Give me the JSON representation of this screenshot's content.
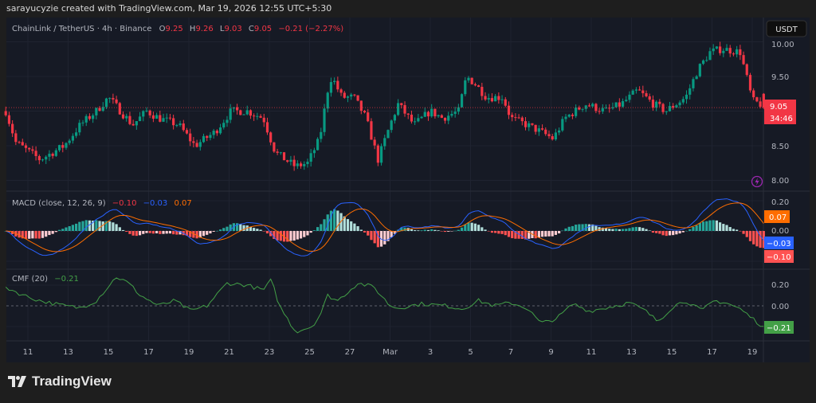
{
  "credit": "sarayucyzie created with TradingView.com, Mar 19, 2026 12:55 UTC+5:30",
  "header": {
    "symbol": "ChainLink / TetherUS · 4h · Binance",
    "o_label": "O",
    "o": "9.25",
    "h_label": "H",
    "h": "9.26",
    "l_label": "L",
    "l": "9.03",
    "c_label": "C",
    "c": "9.05",
    "change": "−0.21 (−2.27%)"
  },
  "currency_button": "USDT",
  "price_axis": {
    "ticks": [
      "10.00",
      "9.50",
      "8.50",
      "8.00"
    ],
    "last_price": "9.05",
    "countdown": "34:46"
  },
  "macd": {
    "legend": "MACD (close, 12, 26, 9)",
    "hist": "−0.10",
    "macd": "−0.03",
    "signal": "0.07",
    "axis_ticks": [
      "0.20",
      "0.00"
    ],
    "label_signal": "0.07",
    "label_macd": "−0.03",
    "label_hist": "−0.10"
  },
  "cmf": {
    "legend": "CMF (20)",
    "value": "−0.21",
    "axis_ticks": [
      "0.20",
      "0.00"
    ],
    "label": "−0.21"
  },
  "time_axis": [
    "11",
    "13",
    "15",
    "17",
    "19",
    "21",
    "23",
    "25",
    "27",
    "Mar",
    "3",
    "5",
    "7",
    "9",
    "11",
    "13",
    "15",
    "17",
    "19"
  ],
  "logo_text": "TradingView",
  "colors": {
    "up": "#089981",
    "down": "#f23645",
    "macd": "#2962ff",
    "signal": "#ff6d00",
    "cmf": "#43a047",
    "bg": "#161a25"
  },
  "chart_data": {
    "type": "candlestick",
    "title": "ChainLink / TetherUS · 4h · Binance",
    "time_unit": "day of Feb 2026 (29 = Mar 1)",
    "time_ticks": [
      11,
      13,
      15,
      17,
      19,
      21,
      23,
      25,
      27,
      29,
      31,
      33,
      35,
      37,
      39,
      41,
      43,
      45,
      47
    ],
    "ylim": [
      7.9,
      10.1
    ],
    "last_candle": {
      "open": 9.25,
      "high": 9.26,
      "low": 9.03,
      "close": 9.05
    },
    "approx_close_path": [
      [
        9.9,
        9.0
      ],
      [
        10.4,
        8.55
      ],
      [
        11.6,
        8.3
      ],
      [
        12.8,
        8.5
      ],
      [
        13.6,
        8.8
      ],
      [
        14.4,
        9.0
      ],
      [
        15.0,
        9.2
      ],
      [
        15.6,
        9.0
      ],
      [
        16.2,
        8.8
      ],
      [
        16.9,
        9.0
      ],
      [
        17.5,
        8.9
      ],
      [
        18.5,
        8.8
      ],
      [
        19.3,
        8.5
      ],
      [
        20.3,
        8.7
      ],
      [
        21.1,
        9.0
      ],
      [
        21.9,
        9.0
      ],
      [
        22.7,
        8.9
      ],
      [
        23.3,
        8.4
      ],
      [
        24.3,
        8.2
      ],
      [
        24.9,
        8.25
      ],
      [
        25.5,
        8.6
      ],
      [
        25.9,
        9.3
      ],
      [
        26.1,
        9.5
      ],
      [
        26.6,
        9.2
      ],
      [
        27.2,
        9.2
      ],
      [
        27.8,
        8.9
      ],
      [
        28.4,
        8.3
      ],
      [
        29.0,
        8.8
      ],
      [
        29.4,
        9.1
      ],
      [
        30.2,
        8.8
      ],
      [
        31.0,
        9.0
      ],
      [
        31.6,
        8.9
      ],
      [
        32.4,
        9.0
      ],
      [
        32.8,
        9.5
      ],
      [
        33.2,
        9.4
      ],
      [
        33.8,
        9.2
      ],
      [
        34.6,
        9.2
      ],
      [
        35.0,
        8.9
      ],
      [
        35.8,
        8.8
      ],
      [
        36.5,
        8.7
      ],
      [
        37.1,
        8.6
      ],
      [
        37.7,
        8.9
      ],
      [
        38.7,
        9.1
      ],
      [
        39.7,
        9.0
      ],
      [
        40.5,
        9.1
      ],
      [
        41.3,
        9.3
      ],
      [
        42.1,
        9.1
      ],
      [
        42.7,
        9.0
      ],
      [
        43.7,
        9.2
      ],
      [
        44.3,
        9.6
      ],
      [
        44.9,
        9.85
      ],
      [
        45.5,
        9.9
      ],
      [
        46.4,
        9.85
      ],
      [
        46.8,
        9.4
      ],
      [
        47.0,
        9.15
      ],
      [
        47.4,
        9.1
      ],
      [
        47.55,
        9.05
      ]
    ],
    "macd": {
      "fast": 12,
      "slow": 26,
      "signal": 9,
      "ylim": [
        -0.2,
        0.25
      ],
      "last": {
        "hist": -0.1,
        "macd": -0.03,
        "signal": 0.07
      }
    },
    "cmf": {
      "period": 20,
      "ylim": [
        -0.32,
        0.32
      ],
      "last": -0.21,
      "approx_path": [
        [
          9.9,
          0.18
        ],
        [
          10.8,
          0.1
        ],
        [
          11.6,
          0.05
        ],
        [
          12.8,
          0.0
        ],
        [
          13.6,
          -0.02
        ],
        [
          14.4,
          0.05
        ],
        [
          15.4,
          0.28
        ],
        [
          16.0,
          0.22
        ],
        [
          16.6,
          0.1
        ],
        [
          17.5,
          0.0
        ],
        [
          18.3,
          0.05
        ],
        [
          19.1,
          -0.05
        ],
        [
          19.9,
          0.0
        ],
        [
          20.9,
          0.22
        ],
        [
          21.9,
          0.2
        ],
        [
          22.7,
          0.15
        ],
        [
          23.1,
          0.25
        ],
        [
          23.5,
          0.0
        ],
        [
          24.3,
          -0.25
        ],
        [
          25.1,
          -0.2
        ],
        [
          25.5,
          -0.1
        ],
        [
          25.9,
          0.1
        ],
        [
          26.4,
          0.05
        ],
        [
          27.4,
          0.22
        ],
        [
          28.2,
          0.18
        ],
        [
          29.0,
          0.0
        ],
        [
          29.4,
          -0.02
        ],
        [
          30.6,
          0.02
        ],
        [
          31.8,
          0.0
        ],
        [
          32.6,
          -0.03
        ],
        [
          33.4,
          0.05
        ],
        [
          34.2,
          0.0
        ],
        [
          35.0,
          0.03
        ],
        [
          35.8,
          -0.02
        ],
        [
          36.5,
          -0.17
        ],
        [
          37.3,
          -0.12
        ],
        [
          38.1,
          0.02
        ],
        [
          38.9,
          -0.05
        ],
        [
          39.7,
          -0.02
        ],
        [
          40.9,
          0.03
        ],
        [
          41.7,
          -0.05
        ],
        [
          42.3,
          -0.15
        ],
        [
          43.1,
          0.0
        ],
        [
          43.7,
          0.05
        ],
        [
          44.5,
          -0.05
        ],
        [
          45.1,
          0.05
        ],
        [
          45.7,
          0.03
        ],
        [
          46.4,
          -0.03
        ],
        [
          47.0,
          -0.12
        ],
        [
          47.6,
          -0.21
        ]
      ]
    }
  }
}
